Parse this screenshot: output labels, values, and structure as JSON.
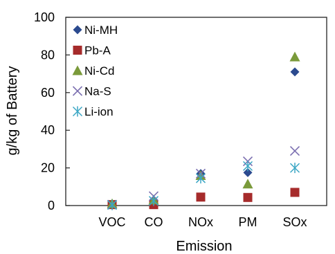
{
  "chart_data": {
    "type": "scatter",
    "categories": [
      "VOC",
      "CO",
      "NOx",
      "PM",
      "SOx"
    ],
    "xlabel": "Emission",
    "ylabel": "g/kg of Battery",
    "ylim": [
      0,
      100
    ],
    "yticks": [
      0,
      20,
      40,
      60,
      80,
      100
    ],
    "grid": false,
    "legend_position": "top-left",
    "series": [
      {
        "name": "Ni-MH",
        "marker": "diamond",
        "color": "#2b4a8f",
        "values": [
          0.5,
          3.0,
          17.0,
          17.5,
          71.0
        ]
      },
      {
        "name": "Pb-A",
        "marker": "square",
        "color": "#a62b2b",
        "values": [
          0.5,
          0.5,
          4.5,
          4.3,
          7.0
        ]
      },
      {
        "name": "Ni-Cd",
        "marker": "triangle",
        "color": "#7a9a3a",
        "values": [
          1.0,
          3.0,
          16.0,
          11.5,
          79.0
        ]
      },
      {
        "name": "Na-S",
        "marker": "x",
        "color": "#7b6fb0",
        "values": [
          0.5,
          5.0,
          17.0,
          23.5,
          29.0
        ]
      },
      {
        "name": "Li-ion",
        "marker": "star",
        "color": "#3aa6c4",
        "values": [
          0.3,
          2.5,
          14.5,
          21.0,
          20.0
        ]
      }
    ]
  }
}
